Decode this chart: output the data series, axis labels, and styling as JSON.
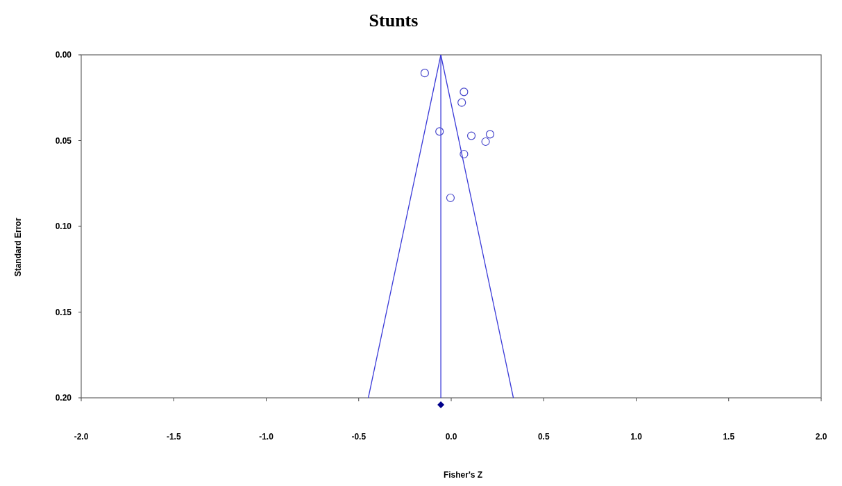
{
  "chart_data": {
    "type": "scatter",
    "title": "Stunts",
    "xlabel": "Fisher's Z",
    "ylabel": "Standard Error",
    "xlim": [
      -2,
      2
    ],
    "xticks": [
      {
        "value": -2,
        "label": "-2.0"
      },
      {
        "value": -1.5,
        "label": "-1.5"
      },
      {
        "value": -1,
        "label": "-1.0"
      },
      {
        "value": -0.5,
        "label": "-0.5"
      },
      {
        "value": 0,
        "label": "0.0"
      },
      {
        "value": 0.5,
        "label": "0.5"
      },
      {
        "value": 1,
        "label": "1.0"
      },
      {
        "value": 1.5,
        "label": "1.5"
      },
      {
        "value": 2,
        "label": "2.0"
      }
    ],
    "ylim": [
      0.2,
      0
    ],
    "yticks": [
      {
        "value": 0,
        "label": "0.00"
      },
      {
        "value": 0.05,
        "label": "0.05"
      },
      {
        "value": 0.1,
        "label": "0.10"
      },
      {
        "value": 0.15,
        "label": "0.15"
      },
      {
        "value": 0.2,
        "label": "0.20"
      }
    ],
    "grid": false,
    "series": [
      {
        "color": "#4a4acc",
        "marker": "circle",
        "x": [
          -0.143,
          0.069,
          0.057,
          -0.063,
          0.109,
          0.21,
          0.186,
          0.069,
          -0.004
        ],
        "values": [
          0.0106,
          0.0216,
          0.0278,
          0.0447,
          0.0472,
          0.0463,
          0.0506,
          0.0579,
          0.0834
        ]
      },
      {
        "type": "line",
        "color": "#3a3ad8",
        "line_style": "solid",
        "x": [
          -0.056,
          -0.448
        ],
        "values": [
          0,
          0.2
        ]
      },
      {
        "type": "line",
        "color": "#3a3ad8",
        "line_style": "solid",
        "x": [
          -0.056,
          0.336
        ],
        "values": [
          0,
          0.2
        ]
      }
    ],
    "ref_lines": [
      {
        "axis": "x",
        "value": -0.056,
        "color": "#3a3ad8",
        "line_style": "solid"
      }
    ]
  }
}
